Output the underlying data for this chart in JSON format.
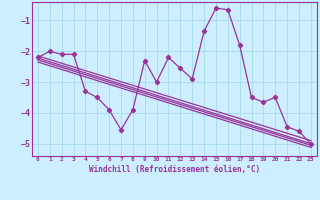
{
  "xlabel": "Windchill (Refroidissement éolien,°C)",
  "bg_color": "#cceeff",
  "grid_color": "#aaddee",
  "line_color": "#993399",
  "xlim": [
    -0.5,
    23.5
  ],
  "ylim": [
    -5.4,
    -0.4
  ],
  "xticks": [
    0,
    1,
    2,
    3,
    4,
    5,
    6,
    7,
    8,
    9,
    10,
    11,
    12,
    13,
    14,
    15,
    16,
    17,
    18,
    19,
    20,
    21,
    22,
    23
  ],
  "yticks": [
    -5,
    -4,
    -3,
    -2,
    -1
  ],
  "main_x": [
    0,
    1,
    2,
    3,
    4,
    5,
    6,
    7,
    8,
    9,
    10,
    11,
    12,
    13,
    14,
    15,
    16,
    17,
    18,
    19,
    20,
    21,
    22,
    23
  ],
  "main_y": [
    -2.2,
    -2.0,
    -2.1,
    -2.1,
    -3.3,
    -3.5,
    -3.9,
    -4.55,
    -3.9,
    -2.3,
    -3.0,
    -2.2,
    -2.55,
    -2.9,
    -1.35,
    -0.6,
    -0.65,
    -1.8,
    -3.5,
    -3.65,
    -3.5,
    -4.45,
    -4.6,
    -5.0
  ],
  "reg_lines": [
    {
      "x": [
        0,
        23
      ],
      "y": [
        -2.15,
        -4.9
      ]
    },
    {
      "x": [
        0,
        23
      ],
      "y": [
        -2.22,
        -5.0
      ]
    },
    {
      "x": [
        0,
        23
      ],
      "y": [
        -2.28,
        -5.05
      ]
    },
    {
      "x": [
        0,
        23
      ],
      "y": [
        -2.35,
        -5.12
      ]
    }
  ]
}
